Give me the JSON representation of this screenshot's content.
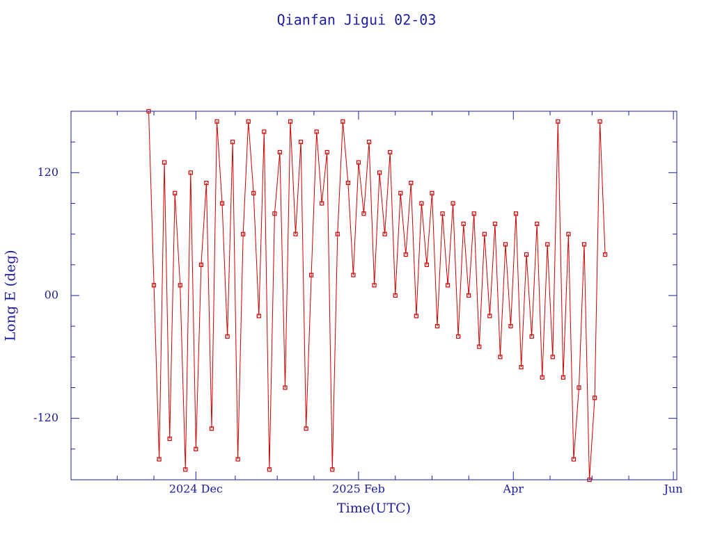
{
  "chart_data": {
    "type": "line",
    "title": "Qianfan Jigui 02-03",
    "x_label": "Time(UTC)",
    "y_label": "Long E (deg)",
    "color": "#cc0000",
    "axis_color": "#1c1c9c",
    "markers": true,
    "x": [
      -18,
      -16,
      -14,
      -12,
      -10,
      -8,
      -6,
      -4,
      -2,
      0,
      2,
      4,
      6,
      8,
      10,
      12,
      14,
      16,
      18,
      20,
      22,
      24,
      26,
      28,
      30,
      32,
      34,
      36,
      38,
      40,
      42,
      44,
      46,
      48,
      50,
      52,
      54,
      56,
      58,
      60,
      62,
      64,
      66,
      68,
      70,
      72,
      74,
      76,
      78,
      80,
      82,
      84,
      86,
      88,
      90,
      92,
      94,
      96,
      98,
      100,
      102,
      104,
      106,
      108,
      110,
      112,
      114,
      116,
      118,
      120,
      122,
      124,
      126,
      128,
      130,
      132,
      134,
      136,
      138,
      140,
      142,
      144,
      146,
      148,
      150,
      152,
      154,
      156
    ],
    "values": [
      180,
      10,
      -160,
      130,
      -140,
      100,
      10,
      -170,
      120,
      -150,
      30,
      110,
      -130,
      170,
      90,
      -40,
      150,
      -160,
      60,
      170,
      100,
      -20,
      160,
      -170,
      80,
      140,
      -90,
      170,
      60,
      150,
      -130,
      20,
      160,
      90,
      140,
      -170,
      60,
      170,
      110,
      20,
      130,
      80,
      150,
      10,
      120,
      60,
      140,
      0,
      100,
      40,
      110,
      -20,
      90,
      30,
      100,
      -30,
      80,
      10,
      90,
      -40,
      70,
      0,
      80,
      -50,
      60,
      -20,
      70,
      -60,
      50,
      -30,
      80,
      -70,
      40,
      -40,
      70,
      -80,
      50,
      -60,
      170,
      -80,
      60,
      -160,
      -90,
      50,
      -180,
      -100,
      170,
      40
    ],
    "xlim": [
      -47.6,
      183.3
    ],
    "xticks": [
      {
        "value": 0,
        "label": "2024 Dec"
      },
      {
        "value": 62,
        "label": "2025 Feb"
      },
      {
        "value": 121,
        "label": "Apr"
      },
      {
        "value": 182,
        "label": "Jun"
      }
    ],
    "xminorticks": [
      -30,
      -16,
      15,
      31,
      45,
      76,
      90,
      104,
      135,
      151,
      165
    ],
    "ylim": [
      -180,
      180
    ],
    "yticks": [
      -120,
      {
        "value": 0,
        "label": "00"
      },
      120
    ],
    "yminorticks": [
      -150,
      -90,
      -60,
      -30,
      30,
      60,
      90,
      150
    ]
  }
}
